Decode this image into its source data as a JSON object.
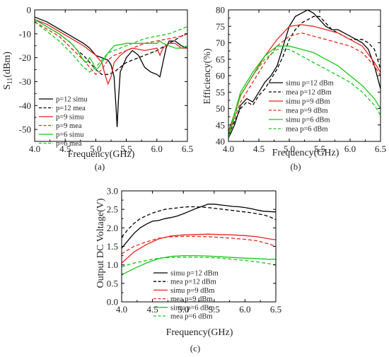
{
  "chart_data": [
    {
      "id": "a",
      "type": "line",
      "caption": "(a)",
      "xlabel": "Frequency(GHz)",
      "ylabel_main": "S",
      "ylabel_sub": "11",
      "ylabel_tail": "(dBm)",
      "xlim": [
        4.0,
        6.5
      ],
      "ylim": [
        -55,
        0
      ],
      "xticks": [
        4.0,
        4.5,
        5.0,
        5.5,
        6.0,
        6.5
      ],
      "xtick_labels": [
        "4.0",
        "4.5",
        "5.0",
        "5.5",
        "6.0",
        "6.5"
      ],
      "yticks": [
        0,
        -10,
        -20,
        -30,
        -40,
        -50
      ],
      "ytick_labels": [
        "0",
        "-10",
        "-20",
        "-30",
        "-40",
        "-50"
      ],
      "legend_position": "bottom-left",
      "series": [
        {
          "name": "p=12  simu",
          "color": "#000000",
          "dash": "solid",
          "x": [
            4.0,
            4.2,
            4.4,
            4.6,
            4.8,
            4.9,
            5.0,
            5.1,
            5.2,
            5.25,
            5.3,
            5.33,
            5.35,
            5.37,
            5.4,
            5.5,
            5.6,
            5.7,
            5.8,
            5.9,
            6.0,
            6.05,
            6.1,
            6.15,
            6.2,
            6.3,
            6.4,
            6.5
          ],
          "y": [
            -3,
            -5,
            -8,
            -11,
            -14,
            -16,
            -19,
            -20,
            -21,
            -23,
            -28,
            -40,
            -49,
            -38,
            -26,
            -20,
            -17,
            -19,
            -24,
            -26,
            -27,
            -28,
            -22,
            -16,
            -13,
            -13,
            -15,
            -16
          ]
        },
        {
          "name": "p=12  mea",
          "color": "#000000",
          "dash": "dashed",
          "x": [
            4.0,
            4.2,
            4.4,
            4.6,
            4.7,
            4.8,
            4.9,
            5.0,
            5.1,
            5.2,
            5.3,
            5.4,
            5.5,
            5.6,
            5.8,
            6.0,
            6.2,
            6.4,
            6.5
          ],
          "y": [
            -4,
            -7,
            -10,
            -14,
            -17,
            -19,
            -22,
            -25,
            -27,
            -27,
            -26,
            -24,
            -22,
            -21,
            -19,
            -17,
            -14,
            -11,
            -10
          ]
        },
        {
          "name": "p=9   simu",
          "color": "#e8251f",
          "dash": "solid",
          "x": [
            4.0,
            4.2,
            4.4,
            4.6,
            4.8,
            4.9,
            5.0,
            5.1,
            5.15,
            5.2,
            5.25,
            5.3,
            5.4,
            5.5,
            5.6,
            5.8,
            6.0,
            6.05,
            6.1,
            6.2,
            6.3,
            6.4,
            6.5
          ],
          "y": [
            -4,
            -6,
            -9,
            -12,
            -15,
            -17,
            -19,
            -22,
            -27,
            -31,
            -28,
            -22,
            -19,
            -17,
            -16,
            -17,
            -16,
            -19,
            -16,
            -14,
            -14,
            -16,
            -16
          ]
        },
        {
          "name": "p=9   mea",
          "color": "#e8251f",
          "dash": "dashed",
          "x": [
            4.0,
            4.2,
            4.4,
            4.6,
            4.8,
            4.9,
            5.0,
            5.1,
            5.2,
            5.3,
            5.4,
            5.6,
            5.8,
            6.0,
            6.2,
            6.4,
            6.5
          ],
          "y": [
            -5,
            -8,
            -11,
            -16,
            -21,
            -24,
            -27,
            -25,
            -21,
            -19,
            -18,
            -16,
            -14,
            -13,
            -12,
            -11,
            -10
          ]
        },
        {
          "name": "p=6   simu",
          "color": "#18c81a",
          "dash": "solid",
          "x": [
            4.0,
            4.2,
            4.4,
            4.6,
            4.7,
            4.8,
            4.85,
            4.9,
            4.95,
            5.0,
            5.05,
            5.1,
            5.2,
            5.3,
            5.5,
            5.7,
            5.9,
            6.0,
            6.05,
            6.1,
            6.2,
            6.3,
            6.4,
            6.5
          ],
          "y": [
            -4,
            -7,
            -10,
            -14,
            -17,
            -21,
            -22,
            -20,
            -22,
            -25,
            -24,
            -22,
            -18,
            -15,
            -14,
            -14,
            -14,
            -14,
            -13,
            -14,
            -15,
            -16,
            -16,
            -15
          ]
        },
        {
          "name": "p=6   mea",
          "color": "#18c81a",
          "dash": "dashed",
          "x": [
            4.0,
            4.2,
            4.4,
            4.6,
            4.7,
            4.8,
            4.9,
            5.0,
            5.1,
            5.2,
            5.4,
            5.6,
            5.8,
            6.0,
            6.2,
            6.4,
            6.5
          ],
          "y": [
            -5,
            -9,
            -13,
            -18,
            -21,
            -24,
            -26,
            -24,
            -21,
            -18,
            -16,
            -14,
            -12,
            -11,
            -10,
            -8,
            -7
          ]
        }
      ]
    },
    {
      "id": "b",
      "type": "line",
      "caption": "(b)",
      "xlabel": "Frequency(GHz)",
      "ylabel": "Efficiency(%)",
      "xlim": [
        4.0,
        6.5
      ],
      "ylim": [
        40,
        80
      ],
      "xticks": [
        4.0,
        4.5,
        5.0,
        5.5,
        6.0,
        6.5
      ],
      "xtick_labels": [
        "4.0",
        "4.5",
        "5.0",
        "5.5",
        "6.0",
        "6.5"
      ],
      "yticks": [
        40,
        45,
        50,
        55,
        60,
        65,
        70,
        75,
        80
      ],
      "ytick_labels": [
        "40",
        "45",
        "50",
        "55",
        "60",
        "65",
        "70",
        "75",
        "80"
      ],
      "legend_position": "bottom-center",
      "series": [
        {
          "name": "simu p=12 dBm",
          "color": "#000000",
          "dash": "solid",
          "x": [
            4.0,
            4.1,
            4.2,
            4.3,
            4.4,
            4.5,
            4.6,
            4.7,
            4.8,
            4.9,
            5.0,
            5.1,
            5.2,
            5.3,
            5.4,
            5.5,
            5.6,
            5.7,
            5.8,
            5.9,
            6.0,
            6.1,
            6.2,
            6.3,
            6.4,
            6.5
          ],
          "y": [
            41,
            45,
            51,
            53,
            52,
            55,
            58,
            60,
            63,
            69,
            75,
            78,
            79,
            80,
            79,
            77,
            75,
            74,
            74,
            73,
            72,
            71,
            70,
            68,
            63,
            56
          ]
        },
        {
          "name": "mea  p=12 dBm",
          "color": "#000000",
          "dash": "dashed",
          "x": [
            4.0,
            4.1,
            4.2,
            4.3,
            4.4,
            4.5,
            4.6,
            4.7,
            4.8,
            4.9,
            5.0,
            5.1,
            5.2,
            5.3,
            5.4,
            5.5,
            5.6,
            5.7,
            5.8,
            5.9,
            6.0,
            6.1,
            6.2,
            6.3,
            6.4,
            6.5
          ],
          "y": [
            42,
            46,
            50,
            52,
            51,
            54,
            56,
            59,
            62,
            66,
            71,
            74,
            76,
            77,
            78,
            78,
            76,
            74,
            73,
            72,
            71,
            71,
            71,
            70,
            68,
            62
          ]
        },
        {
          "name": "simu p=9 dBm",
          "color": "#e8251f",
          "dash": "solid",
          "x": [
            4.0,
            4.2,
            4.4,
            4.6,
            4.8,
            5.0,
            5.2,
            5.4,
            5.6,
            5.8,
            6.0,
            6.2,
            6.4,
            6.5
          ],
          "y": [
            43,
            54,
            60,
            66,
            71,
            75,
            75.5,
            75,
            74,
            73,
            71,
            69,
            64,
            61
          ]
        },
        {
          "name": "mea  p=9 dBm",
          "color": "#e8251f",
          "dash": "dashed",
          "x": [
            4.0,
            4.2,
            4.4,
            4.6,
            4.8,
            5.0,
            5.2,
            5.4,
            5.6,
            5.8,
            6.0,
            6.2,
            6.4,
            6.5
          ],
          "y": [
            42,
            52,
            58,
            64,
            69,
            72,
            73,
            72,
            71,
            70,
            69,
            67,
            63,
            60
          ]
        },
        {
          "name": "simu p=6 dBm",
          "color": "#18c81a",
          "dash": "solid",
          "x": [
            4.0,
            4.2,
            4.4,
            4.6,
            4.8,
            5.0,
            5.2,
            5.4,
            5.6,
            5.8,
            6.0,
            6.2,
            6.4,
            6.5
          ],
          "y": [
            42,
            55,
            61,
            66,
            69,
            69,
            68,
            67,
            65,
            63,
            60,
            57,
            53,
            50
          ]
        },
        {
          "name": "mea  p=6 dBm",
          "color": "#18c81a",
          "dash": "dashed",
          "x": [
            4.0,
            4.2,
            4.4,
            4.6,
            4.8,
            5.0,
            5.2,
            5.4,
            5.6,
            5.8,
            6.0,
            6.2,
            6.4,
            6.5
          ],
          "y": [
            41,
            54,
            60,
            65,
            68,
            68,
            66,
            64,
            62,
            60,
            58,
            55,
            51,
            48
          ]
        }
      ]
    },
    {
      "id": "c",
      "type": "line",
      "caption": "(c)",
      "xlabel": "Frequency(GHz)",
      "ylabel": "Output DC Voltage(V)",
      "xlim": [
        4.0,
        6.5
      ],
      "ylim": [
        0.0,
        3.0
      ],
      "xticks": [
        4.0,
        4.5,
        5.0,
        5.5,
        6.0,
        6.5
      ],
      "xtick_labels": [
        "4.0",
        "4.5",
        "5.0",
        "5.5",
        "6.0",
        "6.5"
      ],
      "yticks": [
        0.0,
        0.5,
        1.0,
        1.5,
        2.0,
        2.5,
        3.0
      ],
      "ytick_labels": [
        "0.0",
        "0.5",
        "1.0",
        "1.5",
        "2.0",
        "2.5",
        "3.0"
      ],
      "legend_position": "bottom-center",
      "series": [
        {
          "name": "simu p=12 dBm",
          "color": "#000000",
          "dash": "solid",
          "x": [
            4.0,
            4.1,
            4.2,
            4.3,
            4.4,
            4.5,
            4.6,
            4.7,
            4.8,
            4.9,
            5.0,
            5.1,
            5.2,
            5.3,
            5.4,
            5.5,
            5.6,
            5.7,
            5.8,
            5.9,
            6.0,
            6.1,
            6.2,
            6.3,
            6.4,
            6.5
          ],
          "y": [
            1.45,
            1.65,
            1.85,
            2.0,
            2.1,
            2.18,
            2.2,
            2.25,
            2.28,
            2.32,
            2.38,
            2.45,
            2.52,
            2.58,
            2.64,
            2.64,
            2.62,
            2.6,
            2.58,
            2.57,
            2.55,
            2.52,
            2.48,
            2.45,
            2.44,
            2.43
          ]
        },
        {
          "name": "mea  p=12 dBm",
          "color": "#000000",
          "dash": "dashed",
          "x": [
            4.0,
            4.1,
            4.2,
            4.3,
            4.4,
            4.5,
            4.6,
            4.7,
            4.8,
            4.9,
            5.0,
            5.1,
            5.2,
            5.3,
            5.4,
            5.5,
            5.6,
            5.7,
            5.8,
            5.9,
            6.0,
            6.1,
            6.2,
            6.3,
            6.4,
            6.5
          ],
          "y": [
            1.75,
            1.95,
            2.12,
            2.25,
            2.33,
            2.4,
            2.45,
            2.5,
            2.52,
            2.54,
            2.56,
            2.57,
            2.57,
            2.56,
            2.55,
            2.53,
            2.51,
            2.49,
            2.47,
            2.45,
            2.43,
            2.41,
            2.38,
            2.35,
            2.3,
            2.22
          ]
        },
        {
          "name": "simu p=9  dBm",
          "color": "#e8251f",
          "dash": "solid",
          "x": [
            4.0,
            4.2,
            4.4,
            4.6,
            4.8,
            5.0,
            5.2,
            5.4,
            5.6,
            5.8,
            6.0,
            6.2,
            6.4,
            6.5
          ],
          "y": [
            1.05,
            1.35,
            1.55,
            1.7,
            1.78,
            1.81,
            1.82,
            1.83,
            1.82,
            1.81,
            1.79,
            1.76,
            1.7,
            1.68
          ]
        },
        {
          "name": "mea  p=9  dBm",
          "color": "#e8251f",
          "dash": "dashed",
          "x": [
            4.0,
            4.2,
            4.4,
            4.6,
            4.8,
            5.0,
            5.2,
            5.4,
            5.6,
            5.8,
            6.0,
            6.2,
            6.4,
            6.5
          ],
          "y": [
            1.3,
            1.5,
            1.62,
            1.72,
            1.76,
            1.77,
            1.77,
            1.76,
            1.74,
            1.72,
            1.69,
            1.65,
            1.56,
            1.5
          ]
        },
        {
          "name": "simu p=6   dBm",
          "color": "#18c81a",
          "dash": "solid",
          "x": [
            4.0,
            4.2,
            4.4,
            4.6,
            4.8,
            5.0,
            5.2,
            5.4,
            5.6,
            5.8,
            6.0,
            6.2,
            6.4,
            6.5
          ],
          "y": [
            0.73,
            0.9,
            1.05,
            1.17,
            1.23,
            1.25,
            1.25,
            1.24,
            1.22,
            1.2,
            1.18,
            1.17,
            1.15,
            1.15
          ]
        },
        {
          "name": "mea  p=6   dBm",
          "color": "#18c81a",
          "dash": "dashed",
          "x": [
            4.0,
            4.2,
            4.4,
            4.6,
            4.8,
            5.0,
            5.2,
            5.4,
            5.6,
            5.8,
            6.0,
            6.2,
            6.4,
            6.5
          ],
          "y": [
            0.95,
            1.05,
            1.12,
            1.18,
            1.2,
            1.21,
            1.21,
            1.2,
            1.18,
            1.15,
            1.12,
            1.08,
            1.03,
            1.0
          ]
        }
      ]
    }
  ]
}
